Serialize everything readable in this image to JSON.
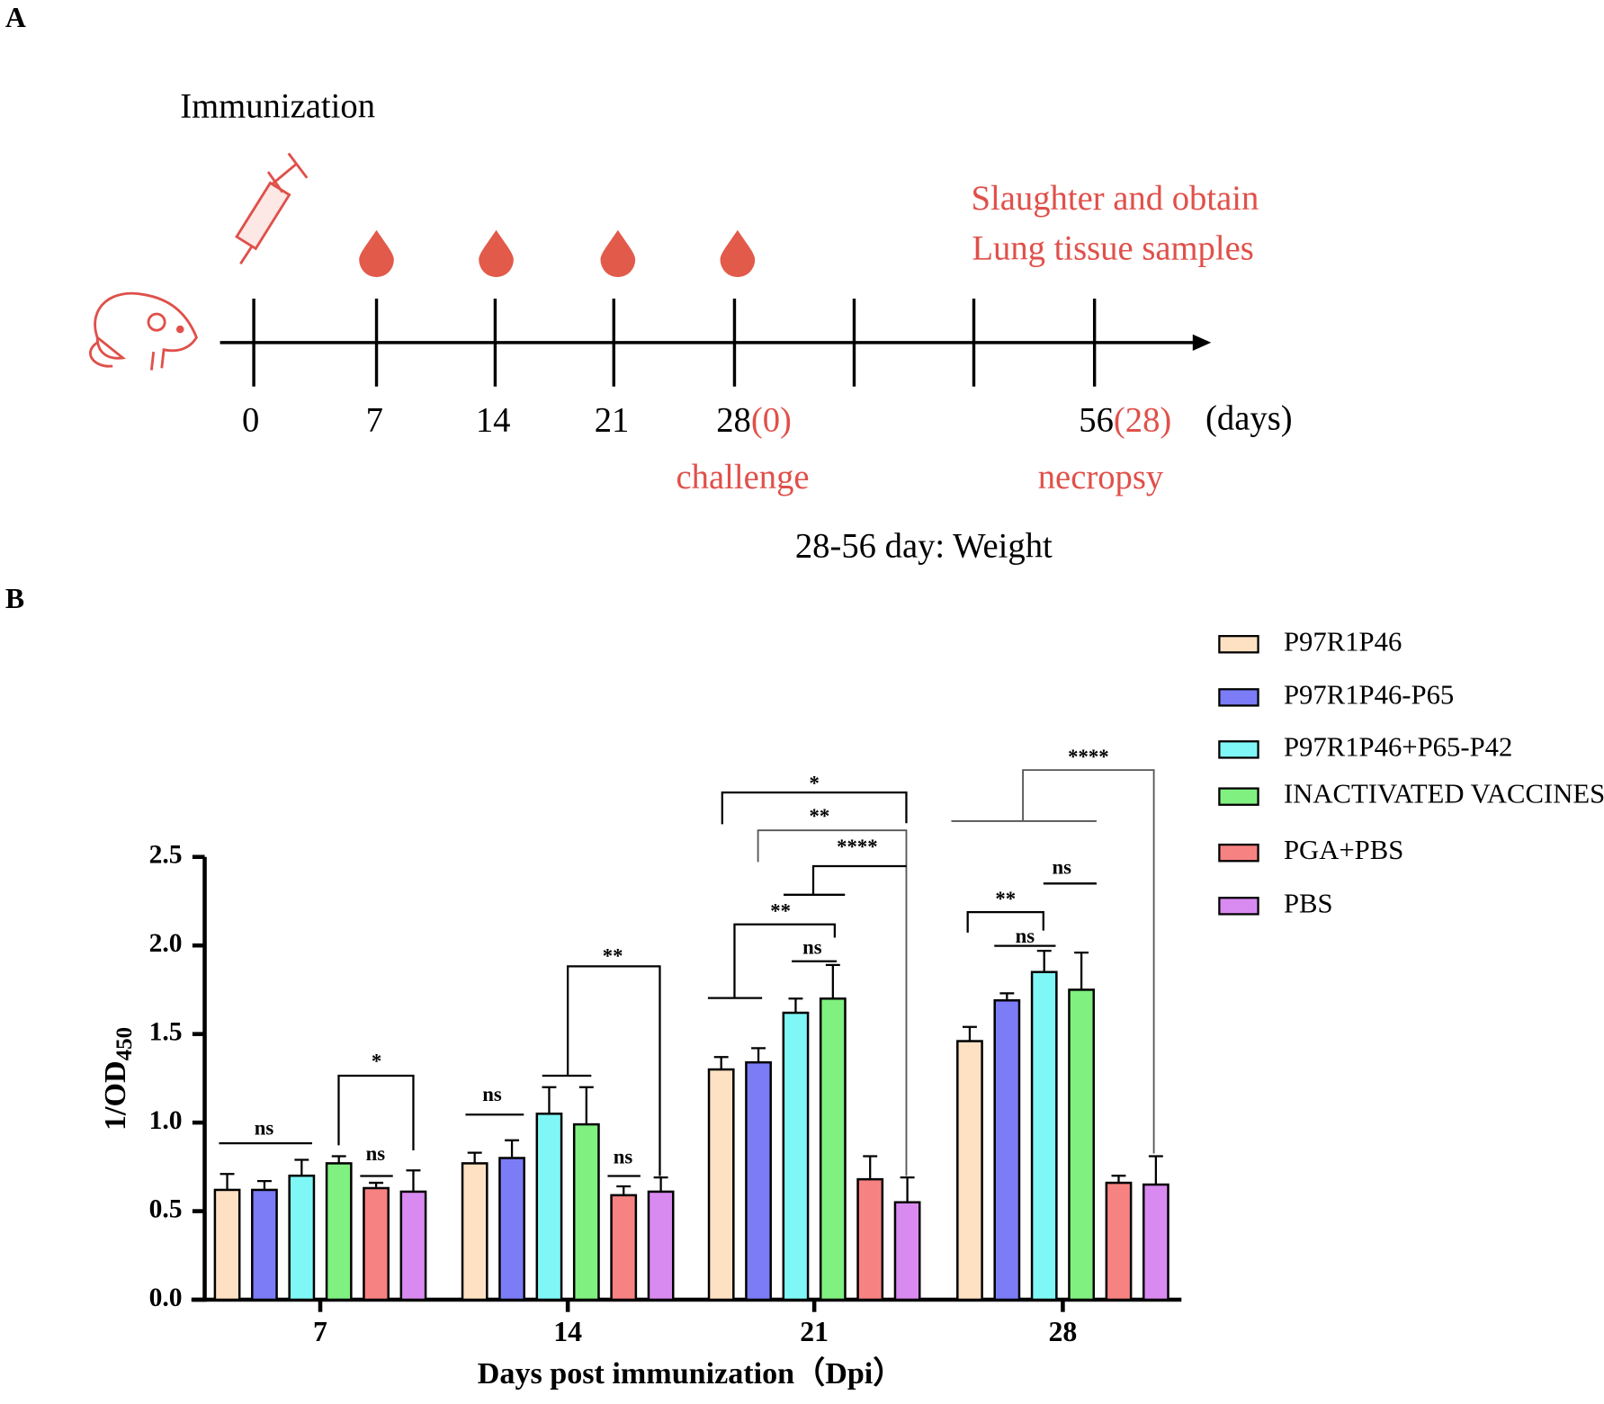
{
  "panels": [
    "A",
    "B"
  ],
  "timeline": {
    "immunization": "Immunization",
    "slaughter": [
      "Slaughter and obtain",
      "Lung tissue samples"
    ],
    "days": [
      "0",
      "7",
      "14",
      "21",
      "28",
      "56"
    ],
    "days_after_challenge": [
      "(0)",
      "(28)"
    ],
    "unit": "(days)",
    "challenge": "challenge",
    "necropsy": "necropsy",
    "weight": "28-56 day: Weight"
  },
  "chart_data": {
    "type": "bar",
    "x_label": "Days post immunization（Dpi）",
    "y_label": "1/OD",
    "y_label_sub": "450",
    "categories": [
      "7",
      "14",
      "21",
      "28"
    ],
    "ylim": [
      0,
      2.5
    ],
    "yticks": [
      {
        "value": 0,
        "label": "0.0"
      },
      0.5,
      {
        "value": 1,
        "label": "1.0"
      },
      1.5,
      {
        "value": 2,
        "label": "2.0"
      },
      2.5
    ],
    "series": [
      {
        "name": "P97R1P46",
        "color": "#fde1c2",
        "values": [
          0.62,
          0.77,
          1.3,
          1.46
        ],
        "errors": [
          0.09,
          0.06,
          0.07,
          0.08
        ]
      },
      {
        "name": "P97R1P46-P65",
        "color": "#7b7cf6",
        "values": [
          0.62,
          0.8,
          1.34,
          1.69
        ],
        "errors": [
          0.05,
          0.1,
          0.08,
          0.04
        ]
      },
      {
        "name": "P97R1P46+P65-P42",
        "color": "#80f7f7",
        "values": [
          0.7,
          1.05,
          1.62,
          1.85
        ],
        "errors": [
          0.09,
          0.15,
          0.08,
          0.12
        ]
      },
      {
        "name": "INACTIVATED VACCINES",
        "color": "#80f080",
        "values": [
          0.77,
          0.99,
          1.7,
          1.75
        ],
        "errors": [
          0.04,
          0.21,
          0.19,
          0.21
        ]
      },
      {
        "name": "PGA+PBS",
        "color": "#f78282",
        "values": [
          0.63,
          0.59,
          0.68,
          0.66
        ],
        "errors": [
          0.03,
          0.05,
          0.13,
          0.04
        ]
      },
      {
        "name": "PBS",
        "color": "#d98af0",
        "values": [
          0.61,
          0.61,
          0.55,
          0.65
        ],
        "errors": [
          0.12,
          0.08,
          0.14,
          0.16
        ]
      }
    ],
    "annotations": [
      "ns",
      "*",
      "ns",
      "ns",
      "**",
      "ns",
      "*",
      "**",
      "****",
      "**",
      "ns",
      "****",
      "ns",
      "**",
      "ns"
    ]
  }
}
